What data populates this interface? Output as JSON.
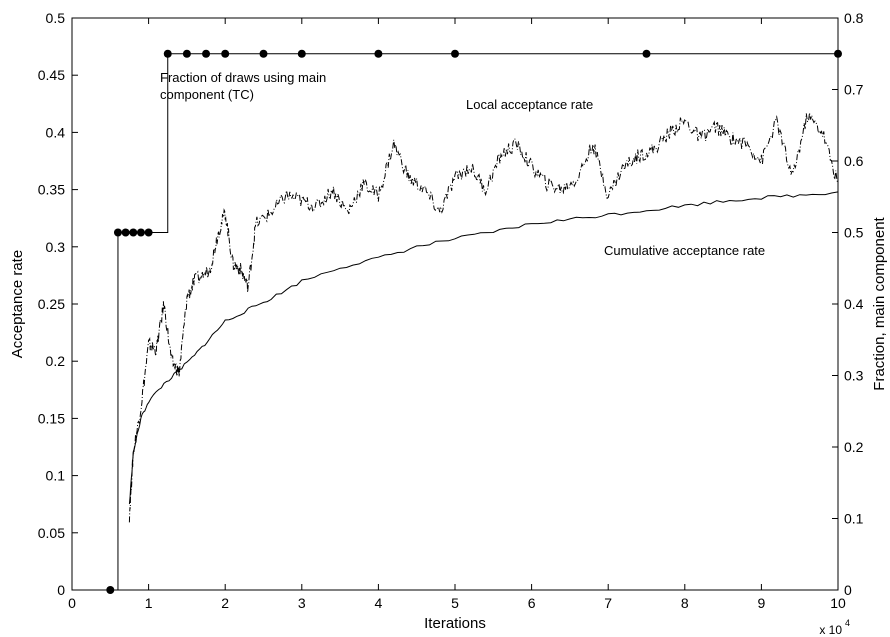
{
  "chart_data": {
    "type": "line",
    "title": "",
    "xlabel": "Iterations",
    "x_multiplier_label": "x 10",
    "x_multiplier_exponent": "4",
    "ylabel_left": "Acceptance rate",
    "ylabel_right": "Fraction, main component",
    "xlim": [
      0,
      10
    ],
    "ylim_left": [
      0,
      0.5
    ],
    "ylim_right": [
      0,
      0.8
    ],
    "x_ticks": [
      "0",
      "1",
      "2",
      "3",
      "4",
      "5",
      "6",
      "7",
      "8",
      "9",
      "10"
    ],
    "y_left_ticks": [
      "0",
      "0.05",
      "0.1",
      "0.15",
      "0.2",
      "0.25",
      "0.3",
      "0.35",
      "0.4",
      "0.45",
      "0.5"
    ],
    "y_right_ticks": [
      "0",
      "0.1",
      "0.2",
      "0.3",
      "0.4",
      "0.5",
      "0.6",
      "0.7",
      "0.8"
    ],
    "grid": false,
    "annotations": {
      "fraction_line1": "Fraction of draws using main",
      "fraction_line2": "component (TC)",
      "local": "Local acceptance rate",
      "cumulative": "Cumulative acceptance rate"
    },
    "series": [
      {
        "axis": "right",
        "style": "step-markers",
        "x": [
          0.5,
          0.6,
          0.7,
          0.8,
          0.9,
          1.0,
          1.25,
          1.5,
          1.75,
          2.0,
          2.5,
          3.0,
          4.0,
          5.0,
          7.5,
          10.0
        ],
        "values": [
          0.0,
          0.5,
          0.5,
          0.5,
          0.5,
          0.5,
          0.75,
          0.75,
          0.75,
          0.75,
          0.75,
          0.75,
          0.75,
          0.75,
          0.75,
          0.75
        ]
      },
      {
        "axis": "left",
        "style": "dashdot",
        "x": [
          0.75,
          0.8,
          0.9,
          1.0,
          1.1,
          1.2,
          1.3,
          1.4,
          1.5,
          1.6,
          1.8,
          1.9,
          2.0,
          2.1,
          2.2,
          2.3,
          2.4,
          2.6,
          2.8,
          3.0,
          3.2,
          3.4,
          3.6,
          3.8,
          4.0,
          4.2,
          4.4,
          4.6,
          4.8,
          5.0,
          5.2,
          5.4,
          5.6,
          5.8,
          6.0,
          6.2,
          6.4,
          6.6,
          6.8,
          7.0,
          7.2,
          7.4,
          7.6,
          7.8,
          8.0,
          8.2,
          8.4,
          8.6,
          8.8,
          9.0,
          9.2,
          9.4,
          9.6,
          9.8,
          10.0
        ],
        "values": [
          0.065,
          0.12,
          0.16,
          0.215,
          0.21,
          0.25,
          0.2,
          0.19,
          0.255,
          0.27,
          0.28,
          0.31,
          0.33,
          0.285,
          0.28,
          0.265,
          0.32,
          0.33,
          0.345,
          0.34,
          0.335,
          0.35,
          0.33,
          0.355,
          0.345,
          0.39,
          0.36,
          0.35,
          0.33,
          0.36,
          0.37,
          0.35,
          0.38,
          0.39,
          0.37,
          0.355,
          0.35,
          0.36,
          0.39,
          0.345,
          0.37,
          0.38,
          0.385,
          0.4,
          0.41,
          0.395,
          0.405,
          0.395,
          0.39,
          0.375,
          0.41,
          0.36,
          0.415,
          0.4,
          0.355
        ]
      },
      {
        "axis": "left",
        "style": "solid",
        "x": [
          0.75,
          0.8,
          0.9,
          1.0,
          1.2,
          1.4,
          1.6,
          1.8,
          2.0,
          2.3,
          2.6,
          3.0,
          3.5,
          4.0,
          4.5,
          5.0,
          5.5,
          6.0,
          6.5,
          7.0,
          7.5,
          8.0,
          8.5,
          9.0,
          9.5,
          10.0
        ],
        "values": [
          0.075,
          0.12,
          0.15,
          0.165,
          0.18,
          0.192,
          0.205,
          0.22,
          0.235,
          0.245,
          0.255,
          0.27,
          0.282,
          0.29,
          0.3,
          0.307,
          0.313,
          0.32,
          0.324,
          0.328,
          0.332,
          0.336,
          0.34,
          0.343,
          0.345,
          0.348
        ]
      }
    ]
  }
}
